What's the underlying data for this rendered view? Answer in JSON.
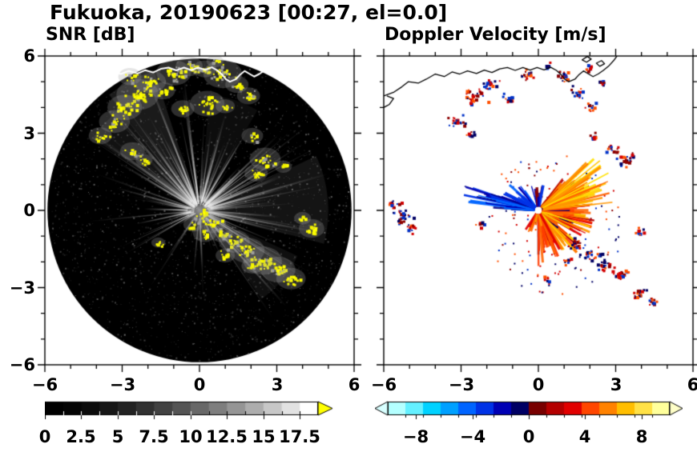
{
  "figure": {
    "title": "Fukuoka, 20190623 [00:27, el=0.0]",
    "background": "#ffffff",
    "text_color": "#000000"
  },
  "chart_data": [
    {
      "id": "snr",
      "type": "heatmap",
      "variant": "radar-ppi-scan",
      "title": "SNR [dB]",
      "xlim": [
        -6,
        6
      ],
      "ylim": [
        -6,
        6
      ],
      "tick_values": [
        -6,
        -3,
        0,
        3,
        6
      ],
      "x_tick_labels": [
        "−6",
        "−3",
        "0",
        "3",
        "6"
      ],
      "y_tick_labels": [
        "6",
        "3",
        "0",
        "−3",
        "−6"
      ],
      "minor_tick_step": 1,
      "scan_disk": {
        "cx": 0,
        "cy": 0,
        "r": 5.9,
        "background": "#000000"
      },
      "echo_color": "#ffff00",
      "colorbar": {
        "orientation": "horizontal",
        "vmin": 0,
        "vmax": 18.75,
        "n_segments": 15,
        "palette": "black-to-white",
        "over_arrow_color": "#ffff00",
        "tick_values": [
          0,
          2.5,
          5,
          7.5,
          10,
          12.5,
          15,
          17.5
        ],
        "tick_labels": [
          "0",
          "2.5",
          "5",
          "7.5",
          "10",
          "12.5",
          "15",
          "17.5"
        ]
      },
      "echo_clusters": [
        [
          -2.9,
          4.0,
          0.45,
          26
        ],
        [
          -2.4,
          4.5,
          0.55,
          34
        ],
        [
          -1.9,
          5.0,
          0.4,
          22
        ],
        [
          -1.4,
          4.65,
          0.3,
          14
        ],
        [
          -1.0,
          5.35,
          0.45,
          26
        ],
        [
          -0.4,
          5.6,
          0.35,
          18
        ],
        [
          0.2,
          5.5,
          0.3,
          14
        ],
        [
          0.9,
          5.3,
          0.5,
          30
        ],
        [
          1.45,
          4.9,
          0.3,
          14
        ],
        [
          0.3,
          4.15,
          0.45,
          26
        ],
        [
          -0.65,
          3.95,
          0.3,
          14
        ],
        [
          1.0,
          4.05,
          0.25,
          10
        ],
        [
          1.9,
          4.45,
          0.3,
          14
        ],
        [
          -3.3,
          3.45,
          0.4,
          20
        ],
        [
          -3.85,
          2.9,
          0.3,
          12
        ],
        [
          -2.7,
          5.2,
          0.3,
          12
        ],
        [
          0.6,
          5.8,
          0.22,
          8
        ],
        [
          -2.6,
          2.3,
          0.32,
          14
        ],
        [
          -2.15,
          1.95,
          0.22,
          8
        ],
        [
          2.55,
          2.0,
          0.4,
          22
        ],
        [
          2.2,
          1.45,
          0.3,
          12
        ],
        [
          2.05,
          2.9,
          0.28,
          12
        ],
        [
          3.25,
          1.7,
          0.22,
          8
        ],
        [
          0.1,
          -0.15,
          0.3,
          16
        ],
        [
          0.5,
          -0.5,
          0.35,
          20
        ],
        [
          0.2,
          -0.9,
          0.3,
          14
        ],
        [
          -0.25,
          -0.55,
          0.25,
          10
        ],
        [
          0.85,
          -0.9,
          0.3,
          14
        ],
        [
          1.35,
          -1.2,
          0.4,
          22
        ],
        [
          1.85,
          -1.55,
          0.45,
          26
        ],
        [
          2.45,
          -1.95,
          0.5,
          30
        ],
        [
          3.05,
          -2.3,
          0.45,
          26
        ],
        [
          3.55,
          -2.65,
          0.38,
          18
        ],
        [
          2.05,
          -2.15,
          0.28,
          12
        ],
        [
          1.0,
          -1.75,
          0.25,
          10
        ],
        [
          4.35,
          -0.7,
          0.33,
          16
        ],
        [
          4.0,
          -0.3,
          0.22,
          8
        ],
        [
          -1.6,
          -1.25,
          0.18,
          6
        ]
      ],
      "ray_sectors": [
        [
          95,
          150,
          42,
          1.5,
          5.6
        ],
        [
          150,
          188,
          15,
          1.0,
          4.5
        ],
        [
          -70,
          45,
          58,
          1.0,
          5.2
        ],
        [
          45,
          95,
          24,
          0.8,
          4.0
        ],
        [
          188,
          290,
          26,
          0.6,
          3.6
        ]
      ],
      "beam_wedges": [
        [
          108,
          128,
          5.7,
          0.1
        ],
        [
          128,
          146,
          5.0,
          0.07
        ],
        [
          -15,
          25,
          5.0,
          0.08
        ],
        [
          -55,
          -25,
          4.2,
          0.06
        ],
        [
          60,
          85,
          4.5,
          0.05
        ]
      ],
      "speckle": {
        "n": 2200,
        "rmax": 5.85
      }
    },
    {
      "id": "vel",
      "type": "heatmap",
      "variant": "radar-ppi-scan",
      "title": "Doppler Velocity [m/s]",
      "xlim": [
        -6,
        6
      ],
      "ylim": [
        -6,
        6
      ],
      "tick_values": [
        -6,
        -3,
        0,
        3,
        6
      ],
      "x_tick_labels": [
        "−6",
        "−3",
        "0",
        "3",
        "6"
      ],
      "minor_tick_step": 1,
      "center_hole_r": 0.13,
      "colorbar": {
        "orientation": "horizontal",
        "vmin": -10,
        "vmax": 10,
        "segment_colors": [
          "#b4ffff",
          "#64f0ff",
          "#00d2ff",
          "#00a0ff",
          "#0064ff",
          "#0032e6",
          "#0000b4",
          "#000064",
          "#780000",
          "#b40000",
          "#e10000",
          "#ff4600",
          "#ff8200",
          "#ffbe00",
          "#ffe146",
          "#ffff9b"
        ],
        "under_arrow_color": "#d8ffff",
        "over_arrow_color": "#ffffc8",
        "tick_values": [
          -8,
          -4,
          0,
          4,
          8
        ],
        "tick_labels": [
          "−8",
          "−4",
          "0",
          "4",
          "8"
        ]
      },
      "palette_patches": [
        "#000064",
        "#8c0000",
        "#d20000",
        "#0032c8",
        "#ff5000"
      ],
      "echo_clusters": [
        [
          -2.5,
          4.5,
          0.5,
          30
        ],
        [
          -1.9,
          4.9,
          0.4,
          22
        ],
        [
          -1.2,
          4.35,
          0.3,
          14
        ],
        [
          -0.5,
          5.3,
          0.35,
          16
        ],
        [
          0.9,
          5.2,
          0.4,
          20
        ],
        [
          1.5,
          4.6,
          0.35,
          16
        ],
        [
          2.0,
          4.0,
          0.28,
          12
        ],
        [
          -3.2,
          3.5,
          0.4,
          20
        ],
        [
          -2.6,
          2.95,
          0.25,
          10
        ],
        [
          0.3,
          5.7,
          0.2,
          8
        ],
        [
          2.45,
          5.0,
          0.22,
          8
        ],
        [
          1.9,
          5.55,
          0.2,
          8
        ],
        [
          3.4,
          2.0,
          0.42,
          24
        ],
        [
          2.9,
          2.4,
          0.3,
          12
        ],
        [
          2.1,
          2.9,
          0.26,
          10
        ],
        [
          -5.35,
          -0.25,
          0.45,
          26
        ],
        [
          -5.6,
          0.3,
          0.3,
          12
        ],
        [
          -4.95,
          -0.65,
          0.3,
          14
        ],
        [
          -2.3,
          -0.5,
          0.2,
          7
        ],
        [
          1.4,
          -1.3,
          0.38,
          20
        ],
        [
          2.0,
          -1.7,
          0.42,
          24
        ],
        [
          2.6,
          -2.1,
          0.42,
          24
        ],
        [
          3.2,
          -2.45,
          0.36,
          18
        ],
        [
          1.1,
          -1.95,
          0.24,
          9
        ],
        [
          3.8,
          -3.2,
          0.35,
          16
        ],
        [
          4.4,
          -3.5,
          0.3,
          12
        ],
        [
          3.9,
          -0.8,
          0.26,
          10
        ],
        [
          0.3,
          -2.6,
          0.2,
          7
        ]
      ],
      "fan_sectors": [
        {
          "a0": -90,
          "a1": 55,
          "n": 175,
          "r0": 0.15,
          "lmin": 0.25,
          "lmax": 2.1,
          "colors": [
            "#ff6400",
            "#ff3c00",
            "#e10000",
            "#ff9600",
            "#ffc800",
            "#b40000",
            "#ff7800"
          ],
          "dark_frac": 0.07
        },
        {
          "a0": 5,
          "a1": 45,
          "n": 28,
          "r0": 0.2,
          "lmin": 1.6,
          "lmax": 2.9,
          "colors": [
            "#ff9600",
            "#ffc800",
            "#ffe100",
            "#ff6400"
          ],
          "dark_frac": 0.04
        },
        {
          "a0": -125,
          "a1": -90,
          "n": 14,
          "r0": 0.15,
          "lmin": 0.25,
          "lmax": 1.0,
          "colors": [
            "#ff6400",
            "#e10000",
            "#ff9600"
          ],
          "dark_frac": 0.1
        },
        {
          "a0": 160,
          "a1": 178,
          "n": 32,
          "r0": 0.15,
          "lmin": 0.5,
          "lmax": 2.9,
          "colors": [
            "#0032e6",
            "#0000b4",
            "#0064ff",
            "#000082"
          ],
          "dark_frac": 0
        },
        {
          "a0": 124,
          "a1": 156,
          "n": 18,
          "r0": 0.15,
          "lmin": 0.3,
          "lmax": 1.5,
          "colors": [
            "#0032e6",
            "#0000b4",
            "#0064ff"
          ],
          "dark_frac": 0
        },
        {
          "a0": 72,
          "a1": 112,
          "n": 14,
          "r0": 0.15,
          "lmin": 0.25,
          "lmax": 0.9,
          "colors": [
            "#0000b4",
            "#8c0000",
            "#0032e6"
          ],
          "dark_frac": 0
        }
      ],
      "speckle": {
        "n": 130,
        "rmax": 2.8,
        "cx": 0.5,
        "cy": -0.5
      }
    }
  ],
  "coastline": {
    "color_on_snr": "#ffffff",
    "color_on_velocity": "#000000",
    "main": [
      [
        -6.0,
        4.45
      ],
      [
        -5.6,
        4.6
      ],
      [
        -5.3,
        4.8
      ],
      [
        -5.05,
        5.0
      ],
      [
        -4.65,
        4.95
      ],
      [
        -4.35,
        5.1
      ],
      [
        -4.0,
        5.3
      ],
      [
        -3.65,
        5.2
      ],
      [
        -3.35,
        5.38
      ],
      [
        -3.05,
        5.3
      ],
      [
        -2.75,
        5.42
      ],
      [
        -2.4,
        5.32
      ],
      [
        -2.1,
        5.45
      ],
      [
        -1.8,
        5.36
      ],
      [
        -1.5,
        5.5
      ],
      [
        -1.2,
        5.55
      ],
      [
        -0.9,
        5.44
      ],
      [
        -0.6,
        5.55
      ],
      [
        -0.32,
        5.45
      ],
      [
        -0.05,
        5.55
      ],
      [
        0.22,
        5.46
      ],
      [
        0.48,
        5.56
      ],
      [
        0.7,
        5.44
      ],
      [
        0.88,
        5.28
      ],
      [
        1.02,
        5.1
      ],
      [
        1.18,
        5.0
      ],
      [
        1.42,
        5.1
      ],
      [
        1.58,
        5.28
      ],
      [
        1.75,
        5.42
      ],
      [
        1.95,
        5.3
      ],
      [
        2.12,
        5.2
      ],
      [
        2.32,
        5.3
      ],
      [
        2.52,
        5.44
      ],
      [
        2.72,
        5.6
      ],
      [
        2.92,
        5.82
      ],
      [
        3.05,
        6.0
      ]
    ],
    "secondary": [
      [
        -6.0,
        4.0
      ],
      [
        -5.78,
        4.12
      ],
      [
        -5.62,
        4.35
      ],
      [
        -5.88,
        4.45
      ]
    ],
    "islands": [
      [
        [
          1.7,
          5.85
        ],
        [
          1.9,
          5.98
        ],
        [
          2.05,
          5.88
        ],
        [
          1.87,
          5.76
        ]
      ],
      [
        [
          2.25,
          5.72
        ],
        [
          2.45,
          5.82
        ],
        [
          2.57,
          5.7
        ],
        [
          2.38,
          5.6
        ]
      ]
    ]
  }
}
